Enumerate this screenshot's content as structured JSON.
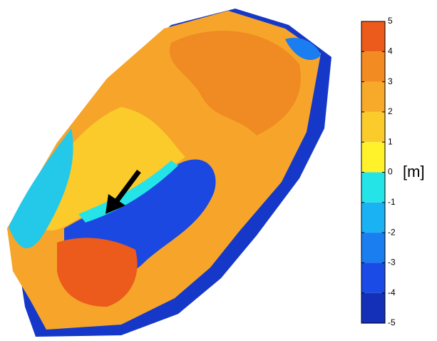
{
  "chart_data": {
    "type": "colormap",
    "colorbar": {
      "clim": [
        -5,
        5
      ],
      "ticks": [
        -5,
        -4,
        -3,
        -2,
        -1,
        0,
        1,
        2,
        3,
        4,
        5
      ],
      "colors": [
        "#1430b8",
        "#1a4be6",
        "#1a7ef0",
        "#1ab2f2",
        "#24e4e8",
        "#fff22a",
        "#fbcb2b",
        "#f7a92a",
        "#f28b22",
        "#ec5a1c"
      ],
      "label": "[m]"
    }
  }
}
